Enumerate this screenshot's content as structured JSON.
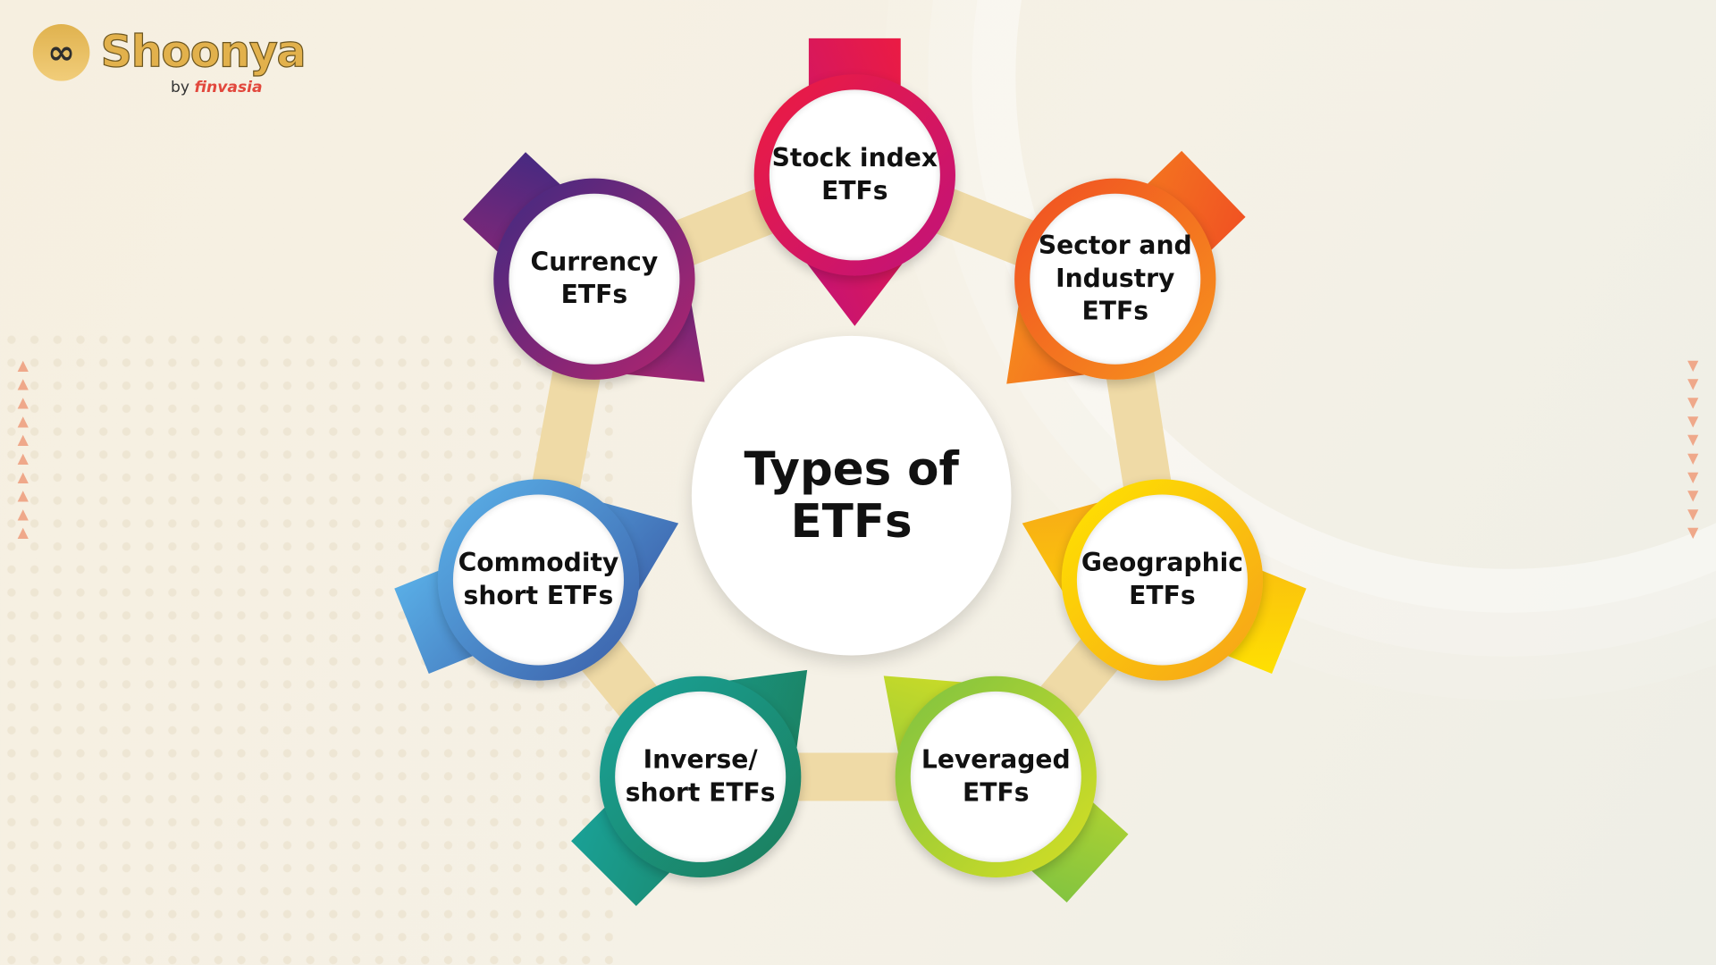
{
  "logo": {
    "brand": "Shoonya",
    "by": "by",
    "company": "finvasia",
    "icon": "infinity-icon"
  },
  "center": {
    "lines": [
      "Types of",
      "ETFs"
    ]
  },
  "band_color": "#efdaa6",
  "nodes": [
    {
      "lines": [
        "Stock index",
        "ETFs"
      ],
      "colors": [
        "#ee1c3f",
        "#c0127b"
      ]
    },
    {
      "lines": [
        "Sector and",
        "Industry",
        "ETFs"
      ],
      "colors": [
        "#f04e23",
        "#f7941d"
      ]
    },
    {
      "lines": [
        "Geographic",
        "ETFs"
      ],
      "colors": [
        "#ffe500",
        "#f6a01a"
      ]
    },
    {
      "lines": [
        "Leveraged",
        "ETFs"
      ],
      "colors": [
        "#7dc242",
        "#d7df23"
      ]
    },
    {
      "lines": [
        "Inverse/",
        "short ETFs"
      ],
      "colors": [
        "#1aa39a",
        "#1b7d5a"
      ]
    },
    {
      "lines": [
        "Commodity",
        "short ETFs"
      ],
      "colors": [
        "#5bb3ea",
        "#3b5ea8"
      ]
    },
    {
      "lines": [
        "Currency",
        "ETFs"
      ],
      "colors": [
        "#3f2a82",
        "#b4246e"
      ]
    }
  ],
  "decor": {
    "left_triangles": "up",
    "right_triangles": "down",
    "triangle_color": "#efa88a"
  }
}
